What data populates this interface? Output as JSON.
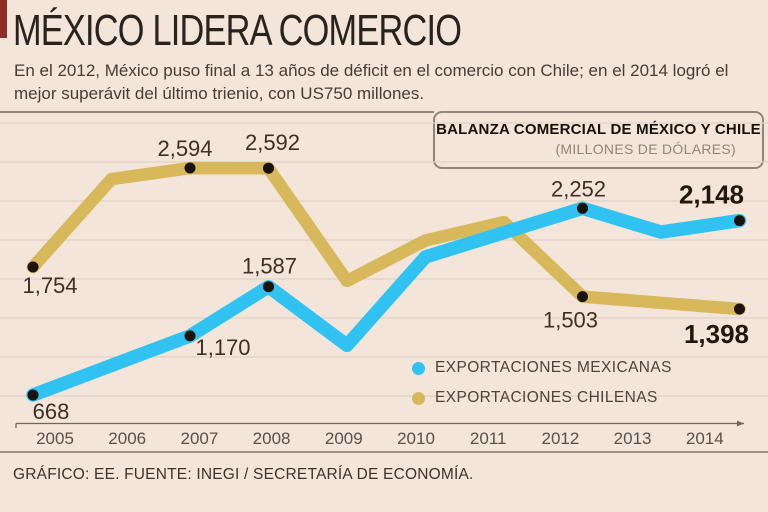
{
  "page": {
    "background_color": "#f3e5d9",
    "corner_mark_color": "#8b2f26",
    "title": "MÉXICO LIDERA COMERCIO",
    "subtitle": "En el 2012, México puso final a 13 años de déficit en el comercio con Chile; en el 2014 logró el mejor superávit del último trienio, con US750 millones.",
    "footer": "GRÁFICO: EE. FUENTE: INEGI / SECRETARÍA DE ECONOMÍA."
  },
  "chart_data": {
    "type": "line",
    "title": "BALANZA COMERCIAL DE MÉXICO Y CHILE",
    "units_label": "(MILLONES DE DÓLARES)",
    "x": [
      2005,
      2006,
      2007,
      2008,
      2009,
      2010,
      2011,
      2012,
      2013,
      2014
    ],
    "grid": "horizontal",
    "ylim": [
      400,
      3050
    ],
    "legend_position": "bottom-right-inside",
    "point_color": "#1b130e",
    "series": [
      {
        "name": "EXPORTACIONES MEXICANAS",
        "color": "#30c3f2",
        "values": [
          668,
          919,
          1170,
          1587,
          1090,
          1840,
          2046,
          2252,
          2050,
          2148
        ],
        "labels": {
          "2005": "668",
          "2007": "1,170",
          "2008": "1,587",
          "2012": "2,252",
          "2014": "2,148"
        }
      },
      {
        "name": "EXPORTACIONES CHILENAS",
        "color": "#d7b95c",
        "values": [
          1754,
          2500,
          2594,
          2592,
          1635,
          1980,
          2135,
          1503,
          1450,
          1398
        ],
        "labels": {
          "2005": "1,754",
          "2007": "2,594",
          "2008": "2,592",
          "2012": "1,503",
          "2014": "1,398"
        }
      }
    ],
    "estimated_years": [
      2006,
      2009,
      2010,
      2011,
      2013
    ]
  }
}
